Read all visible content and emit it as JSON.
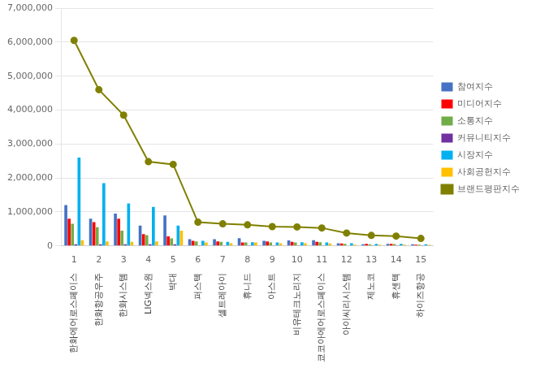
{
  "chart_data": {
    "type": "bar",
    "categories": [
      "1",
      "2",
      "3",
      "4",
      "5",
      "6",
      "7",
      "8",
      "9",
      "10",
      "11",
      "12",
      "13",
      "14",
      "15"
    ],
    "annotations": [
      {
        "text": "한화에어로스페이스",
        "category": "1"
      },
      {
        "text": "한화항공우주",
        "category": "2"
      },
      {
        "text": "한화시스템",
        "category": "3"
      },
      {
        "text": "LIG넥스원",
        "category": "4"
      },
      {
        "text": "박대",
        "category": "5"
      },
      {
        "text": "퍼스텍",
        "category": "6"
      },
      {
        "text": "셀트레아이",
        "category": "7"
      },
      {
        "text": "휴니드",
        "category": "8"
      },
      {
        "text": "아스트",
        "category": "9"
      },
      {
        "text": "비유테크노리지",
        "category": "10"
      },
      {
        "text": "쿄코아에어로스페이스",
        "category": "11"
      },
      {
        "text": "아이씨리시스템",
        "category": "12"
      },
      {
        "text": "제노코",
        "category": "13"
      },
      {
        "text": "휴센텍",
        "category": "14"
      },
      {
        "text": "하이즈항공",
        "category": "15"
      }
    ],
    "series": [
      {
        "name": "참여지수",
        "type": "bar",
        "color": "#4472C4",
        "values": [
          1200000,
          800000,
          950000,
          600000,
          900000,
          200000,
          200000,
          230000,
          150000,
          160000,
          170000,
          80000,
          50000,
          60000,
          50000
        ]
      },
      {
        "name": "미디어지수",
        "type": "bar",
        "color": "#FF0000",
        "values": [
          800000,
          700000,
          800000,
          350000,
          280000,
          150000,
          130000,
          100000,
          130000,
          120000,
          120000,
          70000,
          60000,
          60000,
          40000
        ]
      },
      {
        "name": "소통지수",
        "type": "bar",
        "color": "#70AD47",
        "values": [
          650000,
          550000,
          450000,
          320000,
          220000,
          130000,
          120000,
          100000,
          100000,
          100000,
          110000,
          60000,
          50000,
          55000,
          40000
        ]
      },
      {
        "name": "커뮤니티지수",
        "type": "bar",
        "color": "#7030A0",
        "values": [
          50000,
          50000,
          50000,
          50000,
          50000,
          20000,
          20000,
          20000,
          20000,
          20000,
          20000,
          15000,
          10000,
          10000,
          10000
        ]
      },
      {
        "name": "시장지수",
        "type": "bar",
        "color": "#00B0F0",
        "values": [
          2600000,
          1850000,
          1250000,
          1150000,
          600000,
          150000,
          120000,
          110000,
          100000,
          110000,
          100000,
          80000,
          60000,
          60000,
          50000
        ]
      },
      {
        "name": "사회공헌지수",
        "type": "bar",
        "color": "#FFC000",
        "values": [
          170000,
          130000,
          120000,
          130000,
          450000,
          100000,
          80000,
          100000,
          80000,
          80000,
          70000,
          40000,
          40000,
          40000,
          30000
        ]
      },
      {
        "name": "브랜드평판지수",
        "type": "line",
        "color": "#808000",
        "marker": "circle",
        "values": [
          6050000,
          4600000,
          3850000,
          2480000,
          2400000,
          700000,
          650000,
          620000,
          570000,
          560000,
          530000,
          380000,
          310000,
          290000,
          220000
        ]
      }
    ],
    "ylim": [
      0,
      7000000
    ],
    "yticks": [
      0,
      {
        "value": 1000000,
        "label": "1,000,000"
      },
      {
        "value": 2000000,
        "label": "2,000,000"
      },
      {
        "value": 3000000,
        "label": "3,000,000"
      },
      {
        "value": 4000000,
        "label": "4,000,000"
      },
      {
        "value": 5000000,
        "label": "5,000,000"
      },
      {
        "value": 6000000,
        "label": "6,000,000"
      },
      {
        "value": 7000000,
        "label": "7,000,000"
      }
    ],
    "grid": "y",
    "legend": "right"
  }
}
